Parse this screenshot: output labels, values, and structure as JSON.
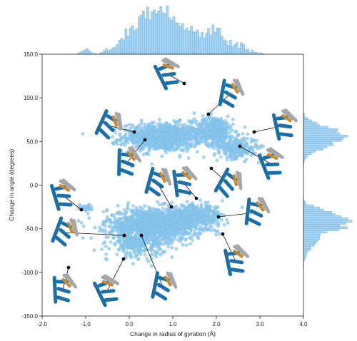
{
  "chart_data": {
    "type": "scatter",
    "title": "",
    "xlabel": "Change in radius of gyration (Å)",
    "ylabel": "Change in angle (degrees)",
    "xlim": [
      -2.0,
      4.0
    ],
    "ylim": [
      -150.0,
      150.0
    ],
    "x_ticks": [
      -2.0,
      -1.0,
      0.0,
      1.0,
      2.0,
      3.0,
      4.0
    ],
    "x_tick_labels": [
      "-2.0",
      "-1.0",
      "0.0",
      "1.0",
      "2.0",
      "3.0",
      "4.0"
    ],
    "y_ticks": [
      -150.0,
      -100.0,
      -50.0,
      0.0,
      50.0,
      100.0,
      150.0
    ],
    "y_tick_labels": [
      "-150.0",
      "-100.0",
      "-50.0",
      "0.0",
      "50.0",
      "100.0",
      "150.0"
    ],
    "grid": false,
    "marginal_histograms": true,
    "colors": {
      "points": "#8cc8ee",
      "points_edge": "#6fb3e0",
      "hist": "#a9d5f2",
      "hist_edge": "#5aa6dc",
      "structure_main": "#1a6fa8",
      "structure_grey": "#a6a6a6",
      "structure_orange": "#c98a2e",
      "callout": "#111111"
    },
    "clusters": [
      {
        "name": "upper-left",
        "center": [
          0.75,
          55
        ],
        "spread": [
          0.45,
          8
        ],
        "count": 900
      },
      {
        "name": "upper-right",
        "center": [
          1.95,
          63
        ],
        "spread": [
          0.22,
          8
        ],
        "count": 380
      },
      {
        "name": "upper-right-tail",
        "center": [
          2.45,
          43
        ],
        "spread": [
          0.25,
          6
        ],
        "count": 250
      },
      {
        "name": "lower-main",
        "center": [
          0.6,
          -45
        ],
        "spread": [
          0.55,
          9
        ],
        "count": 1300
      },
      {
        "name": "lower-right",
        "center": [
          1.5,
          -35
        ],
        "spread": [
          0.35,
          6
        ],
        "count": 350
      },
      {
        "name": "lower-tail",
        "center": [
          0.2,
          -68
        ],
        "spread": [
          0.3,
          7
        ],
        "count": 250
      },
      {
        "name": "left-edge",
        "center": [
          -1.0,
          -26
        ],
        "spread": [
          0.08,
          2
        ],
        "count": 40
      }
    ],
    "structure_icons": [
      {
        "name": "pose-top",
        "anchor": [
          1.25,
          118
        ]
      },
      {
        "name": "pose-upper-right-a",
        "anchor": [
          1.8,
          81
        ]
      },
      {
        "name": "pose-right-a",
        "anchor": [
          2.9,
          62
        ]
      },
      {
        "name": "pose-left-a",
        "anchor": [
          0.0,
          62
        ]
      },
      {
        "name": "pose-left-b",
        "anchor": [
          0.5,
          52
        ]
      },
      {
        "name": "pose-right-b",
        "anchor": [
          2.5,
          45
        ]
      },
      {
        "name": "pose-center-a",
        "anchor": [
          1.3,
          8
        ]
      },
      {
        "name": "pose-center-b",
        "anchor": [
          0.8,
          -12
        ]
      },
      {
        "name": "pose-center-c",
        "anchor": [
          1.55,
          -7
        ]
      },
      {
        "name": "pose-right-c",
        "anchor": [
          1.75,
          8
        ]
      },
      {
        "name": "pose-left-c",
        "anchor": [
          -0.8,
          -27
        ]
      },
      {
        "name": "pose-left-d",
        "anchor": [
          -0.3,
          -57
        ]
      },
      {
        "name": "pose-bottom-a",
        "anchor": [
          -1.2,
          -93
        ]
      },
      {
        "name": "pose-bottom-b",
        "anchor": [
          -0.2,
          -83
        ]
      },
      {
        "name": "pose-bottom-c",
        "anchor": [
          0.4,
          -57
        ]
      },
      {
        "name": "pose-right-d",
        "anchor": [
          2.1,
          -36
        ]
      },
      {
        "name": "pose-right-e",
        "anchor": [
          2.2,
          -72
        ]
      }
    ]
  }
}
